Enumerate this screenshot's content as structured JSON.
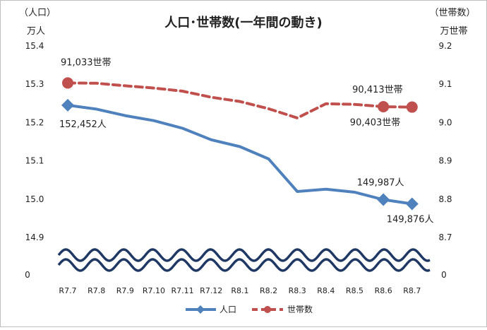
{
  "chart_data": {
    "type": "line",
    "title": "人口･世帯数(一年間の動き)",
    "left_unit_line1": "（人口）",
    "left_unit_line2": "万人",
    "right_unit_line1": "（世帯数）",
    "right_unit_line2": "万世帯",
    "categories": [
      "R7.7",
      "R7.8",
      "R7.9",
      "R7.10",
      "R7.11",
      "R7.12",
      "R8.1",
      "R8.2",
      "R8.3",
      "R8.4",
      "R8.5",
      "R8.6",
      "R8.7"
    ],
    "y_left": {
      "ticks": [
        "15.4",
        "15.3",
        "15.2",
        "15.1",
        "15.0",
        "14.9"
      ],
      "tick_values": [
        15.4,
        15.3,
        15.2,
        15.1,
        15.0,
        14.9
      ],
      "ylim": [
        14.9,
        15.4
      ],
      "zero_label": "0"
    },
    "y_right": {
      "ticks": [
        "9.2",
        "9.1",
        "9.0",
        "8.9",
        "8.8",
        "8.7"
      ],
      "tick_values": [
        9.2,
        9.1,
        9.0,
        8.9,
        8.8,
        8.7
      ],
      "ylim": [
        8.7,
        9.2
      ],
      "zero_label": "0"
    },
    "series": [
      {
        "name": "人口",
        "axis": "left",
        "color": "#4f81bd",
        "style": "solid",
        "marker": "diamond",
        "values": [
          15.2452,
          15.235,
          15.218,
          15.205,
          15.185,
          15.155,
          15.137,
          15.105,
          15.02,
          15.026,
          15.018,
          14.9987,
          14.9876
        ]
      },
      {
        "name": "世帯数",
        "axis": "right",
        "color": "#c0504d",
        "style": "dashed",
        "marker": "circle",
        "values": [
          9.1033,
          9.1025,
          9.096,
          9.09,
          9.082,
          9.066,
          9.055,
          9.036,
          9.012,
          9.049,
          9.0475,
          9.0413,
          9.0403
        ]
      }
    ],
    "data_labels": [
      {
        "series": 0,
        "index": 0,
        "text": "152,452人"
      },
      {
        "series": 0,
        "index": 11,
        "text": "149,987人"
      },
      {
        "series": 0,
        "index": 12,
        "text": "149,876人"
      },
      {
        "series": 1,
        "index": 0,
        "text": "91,033世帯"
      },
      {
        "series": 1,
        "index": 11,
        "text": "90,413世帯"
      },
      {
        "series": 1,
        "index": 12,
        "text": "90,403世帯"
      }
    ],
    "axis_break": true,
    "grid": false,
    "legend_position": "bottom",
    "legend": [
      "人口",
      "世帯数"
    ],
    "break_color": "#1f3864"
  }
}
